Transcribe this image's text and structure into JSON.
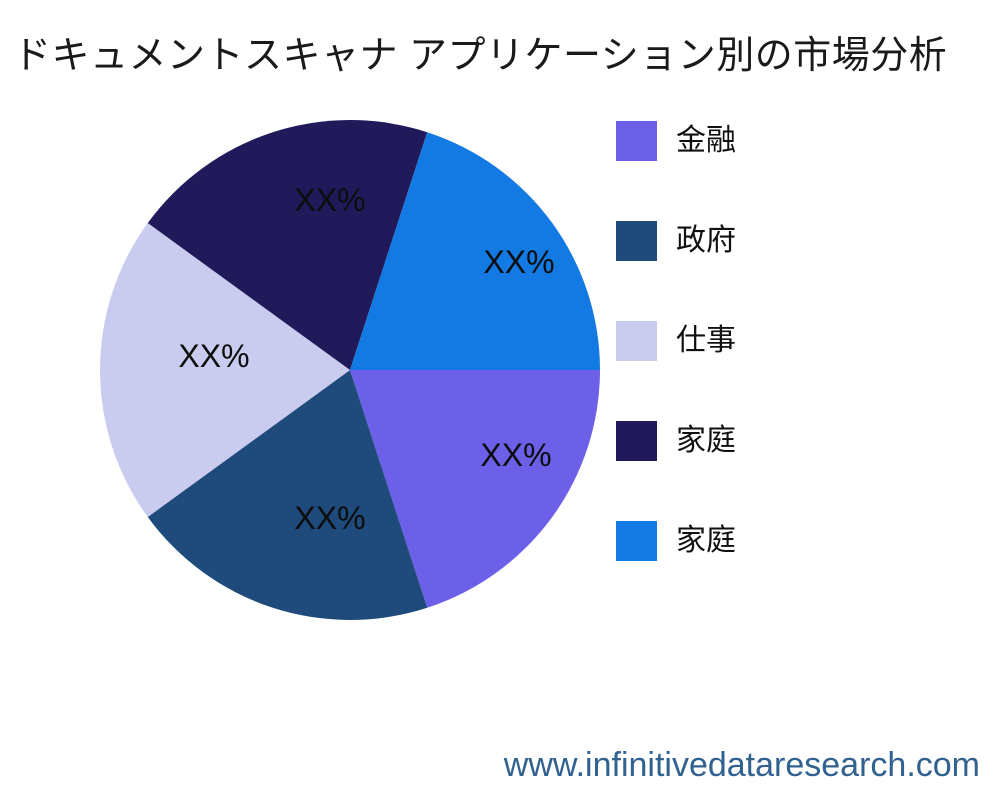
{
  "chart_data": {
    "type": "pie",
    "title": "ドキュメントスキャナ アプリケーション別の市場分析",
    "series": [
      {
        "name": "金融",
        "value": 20,
        "display_value": "XX%",
        "color": "#6C60E8"
      },
      {
        "name": "政府",
        "value": 20,
        "display_value": "XX%",
        "color": "#1F4B7C"
      },
      {
        "name": "仕事",
        "value": 20,
        "display_value": "XX%",
        "color": "#C9CCEF"
      },
      {
        "name": "家庭",
        "value": 20,
        "display_value": "XX%",
        "color": "#201A5B"
      },
      {
        "name": "家庭",
        "value": 20,
        "display_value": "XX%",
        "color": "#127AE2"
      }
    ],
    "start_angle_deg": 0,
    "direction": "clockwise",
    "legend_position": "right",
    "labels_inside": true,
    "background": "#ffffff"
  },
  "footer": {
    "website": "www.infinitivedataresearch.com"
  }
}
